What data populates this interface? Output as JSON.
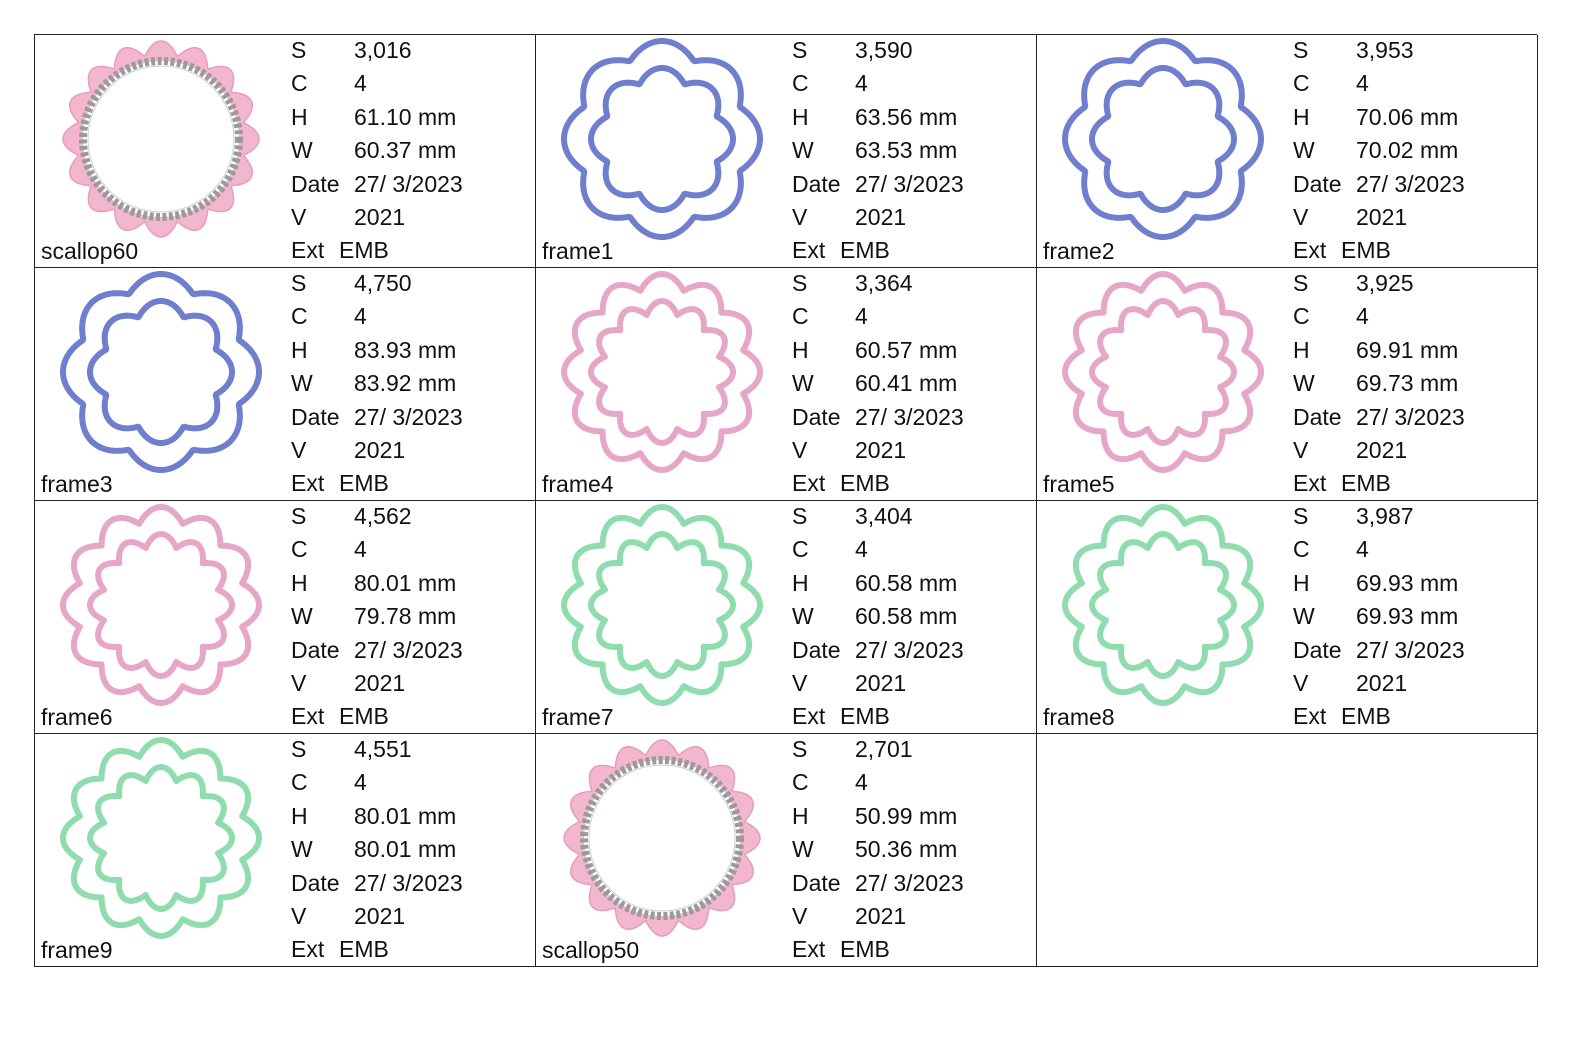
{
  "labels": {
    "stitches": "S",
    "colors": "C",
    "height": "H",
    "width": "W",
    "date": "Date",
    "version": "V",
    "extension": "Ext"
  },
  "designs": [
    {
      "name": "scallop60",
      "style": "scallop",
      "stitches": "3,016",
      "colors": "4",
      "height": "61.10 mm",
      "width": "60.37 mm",
      "date": "27/ 3/2023",
      "version": "2021",
      "ext": "EMB",
      "color": "#f2b6cf",
      "accent": "#9a9a9a"
    },
    {
      "name": "frame1",
      "style": "double",
      "stitches": "3,590",
      "colors": "4",
      "height": "63.56 mm",
      "width": "63.53 mm",
      "date": "27/ 3/2023",
      "version": "2021",
      "ext": "EMB",
      "color": "#6f7fce",
      "lobes": 8
    },
    {
      "name": "frame2",
      "style": "double",
      "stitches": "3,953",
      "colors": "4",
      "height": "70.06 mm",
      "width": "70.02 mm",
      "date": "27/ 3/2023",
      "version": "2021",
      "ext": "EMB",
      "color": "#6f7fce",
      "lobes": 8
    },
    {
      "name": "frame3",
      "style": "double",
      "stitches": "4,750",
      "colors": "4",
      "height": "83.93 mm",
      "width": "83.92 mm",
      "date": "27/ 3/2023",
      "version": "2021",
      "ext": "EMB",
      "color": "#6f7fce",
      "lobes": 8
    },
    {
      "name": "frame4",
      "style": "double",
      "stitches": "3,364",
      "colors": "4",
      "height": "60.57 mm",
      "width": "60.41 mm",
      "date": "27/ 3/2023",
      "version": "2021",
      "ext": "EMB",
      "color": "#e6a7c6",
      "lobes": 12
    },
    {
      "name": "frame5",
      "style": "double",
      "stitches": "3,925",
      "colors": "4",
      "height": "69.91 mm",
      "width": "69.73 mm",
      "date": "27/ 3/2023",
      "version": "2021",
      "ext": "EMB",
      "color": "#e6a7c6",
      "lobes": 12
    },
    {
      "name": "frame6",
      "style": "double",
      "stitches": "4,562",
      "colors": "4",
      "height": "80.01 mm",
      "width": "79.78 mm",
      "date": "27/ 3/2023",
      "version": "2021",
      "ext": "EMB",
      "color": "#e6a7c6",
      "lobes": 12
    },
    {
      "name": "frame7",
      "style": "double",
      "stitches": "3,404",
      "colors": "4",
      "height": "60.58 mm",
      "width": "60.58 mm",
      "date": "27/ 3/2023",
      "version": "2021",
      "ext": "EMB",
      "color": "#8fdcae",
      "lobes": 12
    },
    {
      "name": "frame8",
      "style": "double",
      "stitches": "3,987",
      "colors": "4",
      "height": "69.93 mm",
      "width": "69.93 mm",
      "date": "27/ 3/2023",
      "version": "2021",
      "ext": "EMB",
      "color": "#8fdcae",
      "lobes": 12
    },
    {
      "name": "frame9",
      "style": "double",
      "stitches": "4,551",
      "colors": "4",
      "height": "80.01 mm",
      "width": "80.01 mm",
      "date": "27/ 3/2023",
      "version": "2021",
      "ext": "EMB",
      "color": "#8fdcae",
      "lobes": 12
    },
    {
      "name": "scallop50",
      "style": "scallop",
      "stitches": "2,701",
      "colors": "4",
      "height": "50.99 mm",
      "width": "50.36 mm",
      "date": "27/ 3/2023",
      "version": "2021",
      "ext": "EMB",
      "color": "#f2b6cf",
      "accent": "#9a9a9a"
    }
  ]
}
